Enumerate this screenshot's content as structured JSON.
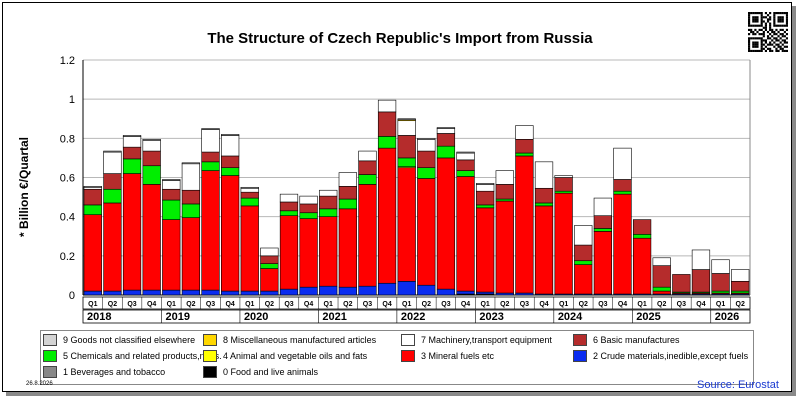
{
  "chart_data": {
    "type": "bar",
    "stacked": true,
    "title": "The Structure of Czech Republic's Import from Russia",
    "ylabel": "* Billion €/Quartal",
    "ylim": [
      0,
      1.2
    ],
    "yticks": [
      "0",
      "0.2",
      "0.4",
      "0.6",
      "0.8",
      "1",
      "1.2"
    ],
    "ytick_values": [
      0,
      0.2,
      0.4,
      0.6,
      0.8,
      1.0,
      1.2
    ],
    "grid": true,
    "categories": [
      "Q1",
      "Q2",
      "Q3",
      "Q4",
      "Q1",
      "Q2",
      "Q3",
      "Q4",
      "Q1",
      "Q2",
      "Q3",
      "Q4",
      "Q1",
      "Q2",
      "Q3",
      "Q4",
      "Q1",
      "Q2",
      "Q3",
      "Q4",
      "Q1",
      "Q2",
      "Q3",
      "Q4",
      "Q1",
      "Q2",
      "Q3",
      "Q4",
      "Q1",
      "Q2",
      "Q3",
      "Q4",
      "Q1",
      "Q2"
    ],
    "years": [
      "2018",
      "2019",
      "2020",
      "2021",
      "2022",
      "2023",
      "2024",
      "2025",
      "2026"
    ],
    "series": [
      {
        "name": "0 Food and live animals",
        "color": "#000000",
        "values": [
          0,
          0,
          0,
          0,
          0,
          0,
          0,
          0,
          0,
          0,
          0,
          0,
          0,
          0,
          0,
          0,
          0,
          0,
          0,
          0.005,
          0.005,
          0,
          0,
          0,
          0,
          0,
          0,
          0,
          0,
          0,
          0,
          0,
          0,
          0
        ]
      },
      {
        "name": "2 Crude materials,inedible,except fuels",
        "color": "#0a2cf0",
        "values": [
          0.02,
          0.02,
          0.025,
          0.025,
          0.025,
          0.025,
          0.025,
          0.02,
          0.02,
          0.02,
          0.03,
          0.04,
          0.045,
          0.04,
          0.045,
          0.06,
          0.07,
          0.05,
          0.03,
          0.015,
          0.01,
          0.01,
          0.01,
          0.005,
          0.005,
          0.005,
          0.005,
          0.005,
          0.005,
          0.005,
          0.005,
          0.005,
          0.005,
          0.005
        ]
      },
      {
        "name": "3 Mineral fuels etc",
        "color": "#ff0000",
        "values": [
          0.39,
          0.45,
          0.595,
          0.54,
          0.36,
          0.37,
          0.61,
          0.59,
          0.435,
          0.115,
          0.375,
          0.35,
          0.355,
          0.4,
          0.52,
          0.69,
          0.58,
          0.545,
          0.67,
          0.585,
          0.43,
          0.47,
          0.7,
          0.45,
          0.515,
          0.15,
          0.32,
          0.51,
          0.285,
          0.015,
          0.005,
          0.005,
          0.005,
          0.005
        ]
      },
      {
        "name": "4 Animal and vegetable oils and fats",
        "color": "#ffff00",
        "values": [
          0,
          0,
          0,
          0,
          0,
          0,
          0,
          0,
          0,
          0,
          0,
          0,
          0,
          0,
          0,
          0,
          0.005,
          0,
          0,
          0,
          0,
          0,
          0,
          0,
          0,
          0,
          0,
          0,
          0,
          0,
          0,
          0,
          0,
          0
        ]
      },
      {
        "name": "5 Chemicals and related products,n.e.s.",
        "color": "#00ee00",
        "values": [
          0.05,
          0.07,
          0.075,
          0.095,
          0.1,
          0.07,
          0.045,
          0.04,
          0.04,
          0.025,
          0.025,
          0.03,
          0.04,
          0.05,
          0.05,
          0.06,
          0.045,
          0.055,
          0.06,
          0.03,
          0.015,
          0.01,
          0.015,
          0.015,
          0.01,
          0.02,
          0.015,
          0.015,
          0.02,
          0.02,
          0.005,
          0.005,
          0.01,
          0.01
        ]
      },
      {
        "name": "6 Basic manufactures",
        "color": "#b52c2c",
        "values": [
          0.08,
          0.08,
          0.06,
          0.075,
          0.055,
          0.07,
          0.05,
          0.06,
          0.03,
          0.04,
          0.045,
          0.045,
          0.065,
          0.065,
          0.07,
          0.125,
          0.115,
          0.085,
          0.065,
          0.055,
          0.07,
          0.075,
          0.07,
          0.075,
          0.07,
          0.08,
          0.065,
          0.06,
          0.075,
          0.11,
          0.09,
          0.115,
          0.09,
          0.05
        ]
      },
      {
        "name": "7 Machinery,transport equipment",
        "color": "#ffffff",
        "values": [
          0.01,
          0.11,
          0.055,
          0.055,
          0.045,
          0.135,
          0.115,
          0.105,
          0.02,
          0.04,
          0.04,
          0.04,
          0.03,
          0.07,
          0.05,
          0.06,
          0.075,
          0.06,
          0.025,
          0.035,
          0.035,
          0.07,
          0.07,
          0.135,
          0.01,
          0.1,
          0.09,
          0.16,
          0.0,
          0.04,
          0.0,
          0.1,
          0.07,
          0.06
        ]
      },
      {
        "name": "8 Miscellaneous manufactured articles",
        "color": "#ffd700",
        "values": [
          0,
          0,
          0,
          0,
          0,
          0,
          0,
          0,
          0,
          0,
          0,
          0,
          0,
          0,
          0,
          0,
          0.005,
          0,
          0,
          0,
          0,
          0,
          0,
          0,
          0,
          0,
          0,
          0,
          0,
          0,
          0,
          0,
          0,
          0
        ]
      },
      {
        "name": "9 Goods not classified elsewhere",
        "color": "#d4d4d4",
        "values": [
          0.005,
          0.005,
          0.005,
          0.005,
          0.005,
          0.005,
          0.005,
          0.005,
          0.005,
          0,
          0,
          0,
          0,
          0,
          0,
          0,
          0.005,
          0.005,
          0.005,
          0.005,
          0.005,
          0,
          0,
          0,
          0,
          0,
          0,
          0,
          0,
          0,
          0,
          0,
          0,
          0
        ]
      },
      {
        "name": "1 Beverages and tobacco",
        "color": "#888888",
        "values": [
          0,
          0,
          0,
          0,
          0,
          0,
          0,
          0,
          0,
          0,
          0,
          0,
          0,
          0,
          0,
          0,
          0,
          0,
          0,
          0,
          0,
          0,
          0,
          0,
          0,
          0,
          0,
          0,
          0,
          0,
          0,
          0,
          0,
          0
        ]
      }
    ],
    "legend_order": [
      8,
      7,
      6,
      5,
      4,
      3,
      2,
      1,
      9,
      0
    ],
    "legend_placement": "bottom"
  },
  "date_label": "26.8.2026",
  "source": "Source: Eurostat",
  "qr_icon": "qr-code-icon"
}
